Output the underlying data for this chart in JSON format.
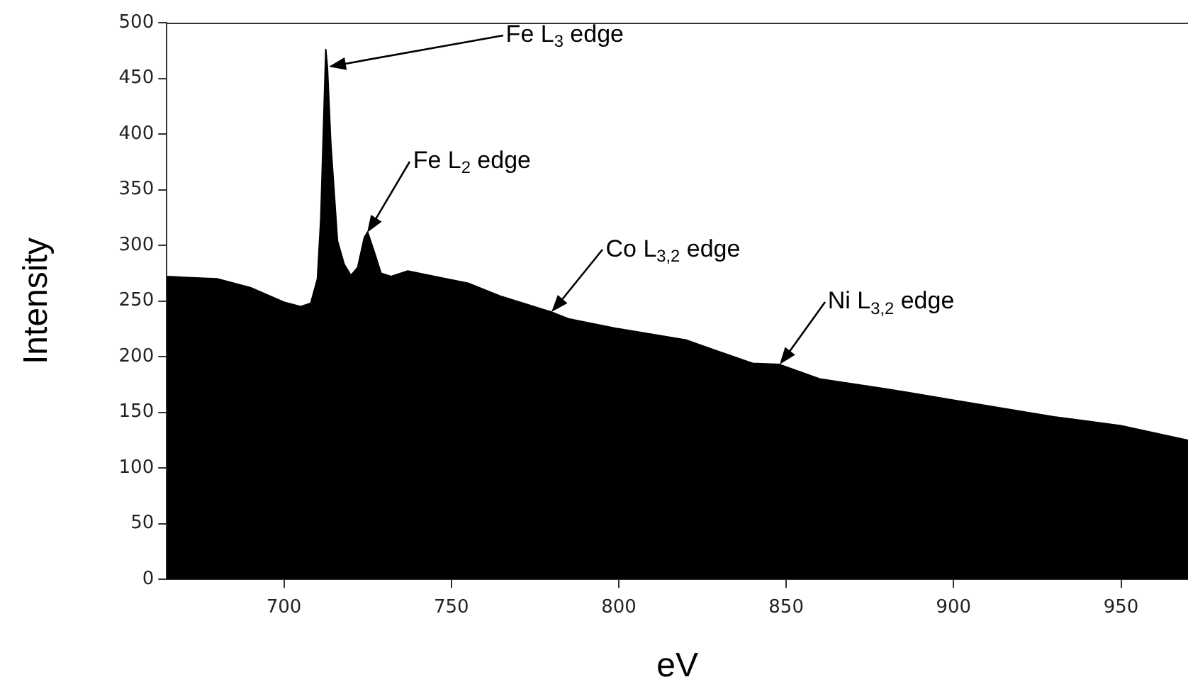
{
  "chart_data": {
    "type": "area",
    "xlabel": "eV",
    "ylabel": "Intensity",
    "x": [
      665,
      680,
      690,
      700,
      705,
      708,
      710,
      711,
      712,
      712.5,
      713,
      714,
      716,
      718,
      720,
      722,
      724,
      725,
      727,
      729,
      732,
      737,
      745,
      755,
      765,
      780,
      785,
      800,
      820,
      840,
      848,
      860,
      880,
      900,
      930,
      950,
      970
    ],
    "series": [
      {
        "color": "#000000",
        "values": [
          272,
          270,
          262,
          249,
          245,
          248,
          270,
          324,
          426,
          476,
          460,
          392,
          304,
          283,
          273,
          280,
          307,
          312,
          294,
          275,
          272,
          277,
          272,
          266,
          254,
          240,
          234,
          225,
          215,
          194,
          193,
          180,
          171,
          161,
          146,
          138,
          125
        ]
      }
    ],
    "xlim": [
      665,
      970
    ],
    "xticks": [
      700,
      750,
      800,
      850,
      900,
      950
    ],
    "ylim": [
      0,
      500
    ],
    "yticks": [
      0,
      50,
      100,
      150,
      200,
      250,
      300,
      350,
      400,
      450,
      500
    ],
    "grid": false,
    "legend": false,
    "marker": "none",
    "line_style": "solid",
    "annotations": [
      "Fe L$_{3}$ edge",
      {
        "text": "Fe L$_{2}$ edge",
        "x": 725,
        "y": 312
      },
      {
        "text": "Co L$_{3,2}$ edge",
        "x": 780,
        "y": 240
      },
      {
        "text": "Ni L$_{3,2}$ edge",
        "x": 848,
        "y": 193
      }
    ]
  }
}
